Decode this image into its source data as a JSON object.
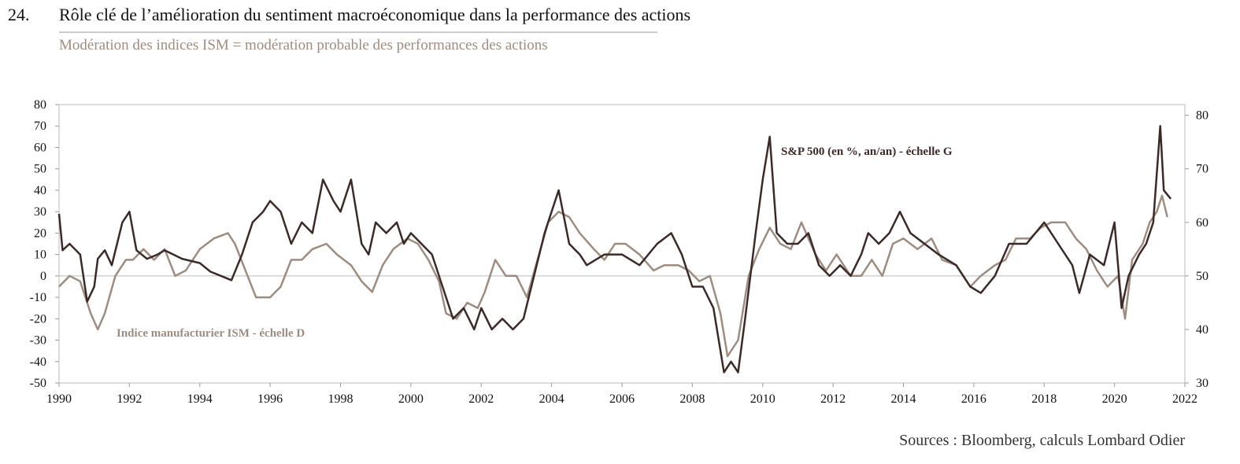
{
  "chart_data": {
    "type": "line",
    "number": "24.",
    "title": "Rôle clé de l’amélioration du sentiment macroéconomique dans la performance des actions",
    "subtitle": "Modération des indices ISM = modération probable des performances des actions",
    "source": "Sources : Bloomberg, calculs Lombard Odier",
    "annotations": [
      "S&P 500 (en %, an/an) - échelle G",
      "Indice manufacturier ISM - échelle D"
    ],
    "xlim": [
      1990,
      2022
    ],
    "xticks": [
      1990,
      1992,
      1994,
      1996,
      1998,
      2000,
      2002,
      2004,
      2006,
      2008,
      2010,
      2012,
      2014,
      2016,
      2018,
      2020,
      2022
    ],
    "ylim": [
      -50,
      80
    ],
    "yticks": [
      -50,
      -40,
      -30,
      -20,
      -10,
      0,
      10,
      20,
      30,
      40,
      50,
      60,
      70,
      80
    ],
    "y2lim": [
      30,
      82
    ],
    "y2ticks": [
      30,
      40,
      50,
      60,
      70,
      80
    ],
    "series": [
      {
        "name": "S&P 500 (en %, an/an)",
        "color": "#3b2a28",
        "axis": "y",
        "x": [
          1990.0,
          1990.1,
          1990.3,
          1990.6,
          1990.8,
          1991.0,
          1991.1,
          1991.3,
          1991.5,
          1991.8,
          1992.0,
          1992.2,
          1992.5,
          1992.8,
          1993.0,
          1993.5,
          1994.0,
          1994.3,
          1994.6,
          1994.9,
          1995.2,
          1995.5,
          1995.8,
          1996.0,
          1996.3,
          1996.6,
          1996.9,
          1997.2,
          1997.5,
          1997.8,
          1998.0,
          1998.3,
          1998.6,
          1998.8,
          1999.0,
          1999.3,
          1999.6,
          1999.8,
          2000.0,
          2000.3,
          2000.6,
          2000.9,
          2001.2,
          2001.5,
          2001.8,
          2002.0,
          2002.3,
          2002.6,
          2002.9,
          2003.2,
          2003.5,
          2003.8,
          2004.0,
          2004.2,
          2004.5,
          2004.8,
          2005.0,
          2005.5,
          2006.0,
          2006.5,
          2007.0,
          2007.4,
          2007.7,
          2008.0,
          2008.3,
          2008.6,
          2008.9,
          2009.1,
          2009.3,
          2009.5,
          2009.8,
          2010.0,
          2010.2,
          2010.4,
          2010.7,
          2011.0,
          2011.3,
          2011.6,
          2011.9,
          2012.2,
          2012.5,
          2012.8,
          2013.0,
          2013.3,
          2013.6,
          2013.9,
          2014.2,
          2014.6,
          2015.0,
          2015.5,
          2015.9,
          2016.2,
          2016.6,
          2017.0,
          2017.5,
          2018.0,
          2018.4,
          2018.8,
          2019.0,
          2019.3,
          2019.7,
          2020.0,
          2020.2,
          2020.4,
          2020.7,
          2020.9,
          2021.1,
          2021.3,
          2021.4,
          2021.6
        ],
        "values": [
          29,
          12,
          15,
          10,
          -12,
          -5,
          8,
          12,
          5,
          25,
          30,
          12,
          8,
          10,
          12,
          8,
          6,
          2,
          0,
          -2,
          10,
          25,
          30,
          35,
          30,
          15,
          25,
          20,
          45,
          35,
          30,
          45,
          15,
          10,
          25,
          20,
          25,
          15,
          20,
          15,
          10,
          -5,
          -20,
          -15,
          -25,
          -15,
          -25,
          -20,
          -25,
          -20,
          0,
          20,
          30,
          40,
          15,
          10,
          5,
          10,
          10,
          5,
          15,
          20,
          10,
          -5,
          -5,
          -15,
          -45,
          -40,
          -45,
          -20,
          20,
          45,
          65,
          20,
          15,
          15,
          20,
          5,
          0,
          5,
          0,
          10,
          20,
          15,
          20,
          30,
          20,
          15,
          10,
          5,
          -5,
          -8,
          0,
          15,
          15,
          25,
          15,
          5,
          -8,
          10,
          5,
          25,
          -15,
          0,
          10,
          15,
          25,
          70,
          40,
          36
        ]
      },
      {
        "name": "Indice manufacturier ISM",
        "color": "#9e8c80",
        "axis": "y2",
        "x": [
          1990.0,
          1990.3,
          1990.6,
          1990.9,
          1991.1,
          1991.3,
          1991.6,
          1991.9,
          1992.1,
          1992.4,
          1992.7,
          1993.0,
          1993.3,
          1993.6,
          1994.0,
          1994.4,
          1994.8,
          1995.0,
          1995.3,
          1995.6,
          1996.0,
          1996.3,
          1996.6,
          1996.9,
          1997.2,
          1997.6,
          1997.9,
          1998.3,
          1998.6,
          1998.9,
          1999.2,
          1999.5,
          1999.9,
          2000.2,
          2000.5,
          2000.8,
          2001.0,
          2001.3,
          2001.6,
          2001.9,
          2002.1,
          2002.4,
          2002.7,
          2003.0,
          2003.3,
          2003.6,
          2003.9,
          2004.2,
          2004.5,
          2004.8,
          2005.2,
          2005.5,
          2005.8,
          2006.1,
          2006.5,
          2006.9,
          2007.2,
          2007.6,
          2007.9,
          2008.2,
          2008.5,
          2008.8,
          2009.0,
          2009.3,
          2009.6,
          2009.9,
          2010.2,
          2010.5,
          2010.8,
          2011.1,
          2011.5,
          2011.8,
          2012.1,
          2012.5,
          2012.8,
          2013.1,
          2013.4,
          2013.7,
          2014.0,
          2014.4,
          2014.8,
          2015.1,
          2015.5,
          2015.9,
          2016.2,
          2016.6,
          2016.9,
          2017.2,
          2017.6,
          2017.9,
          2018.2,
          2018.6,
          2018.9,
          2019.2,
          2019.5,
          2019.8,
          2020.1,
          2020.3,
          2020.5,
          2020.8,
          2021.0,
          2021.2,
          2021.35,
          2021.5
        ],
        "values": [
          48,
          50,
          49,
          43,
          40,
          43,
          50,
          53,
          53,
          55,
          53,
          55,
          50,
          51,
          55,
          57,
          58,
          56,
          51,
          46,
          46,
          48,
          53,
          53,
          55,
          56,
          54,
          52,
          49,
          47,
          52,
          55,
          57,
          56,
          53,
          49,
          43,
          42,
          45,
          44,
          47,
          53,
          50,
          50,
          46,
          53,
          60,
          62,
          61,
          58,
          55,
          53,
          56,
          56,
          54,
          51,
          52,
          52,
          51,
          49,
          50,
          43,
          35,
          38,
          50,
          55,
          59,
          56,
          55,
          60,
          54,
          51,
          54,
          50,
          50,
          53,
          50,
          56,
          57,
          55,
          57,
          53,
          52,
          48,
          50,
          52,
          53,
          57,
          57,
          59,
          60,
          60,
          57,
          55,
          51,
          48,
          50,
          42,
          53,
          56,
          60,
          62,
          65,
          61
        ]
      }
    ]
  }
}
